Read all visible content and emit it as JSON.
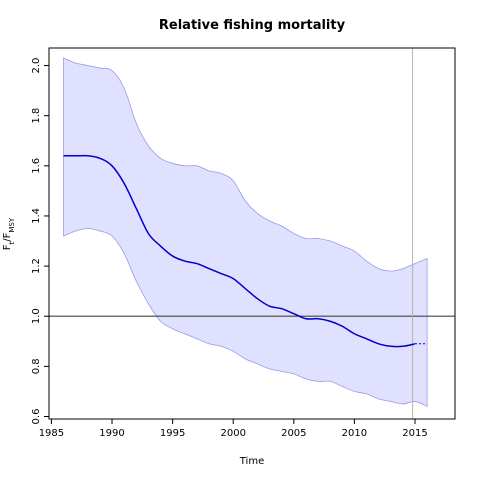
{
  "chart_data": {
    "type": "line",
    "title": "Relative fishing mortality",
    "xlabel": "Time",
    "ylabel": {
      "main": "F",
      "sub1": "t",
      "sep": "/F",
      "sub2": "MSY"
    },
    "xlim": [
      1984.8,
      2018.3
    ],
    "ylim": [
      0.59,
      2.07
    ],
    "x_ticks": [
      1985,
      1990,
      1995,
      2000,
      2005,
      2010,
      2015
    ],
    "x_tick_labels": [
      "1985",
      "1990",
      "1995",
      "2000",
      "2005",
      "2010",
      "2015"
    ],
    "y_ticks": [
      0.6,
      0.8,
      1.0,
      1.2,
      1.4,
      1.6,
      1.8,
      2.0
    ],
    "y_tick_labels": [
      "0.6",
      "0.8",
      "1.0",
      "1.2",
      "1.4",
      "1.6",
      "1.8",
      "2.0"
    ],
    "reference_line_y": 1.0,
    "vertical_line_x": 2014.8,
    "colors": {
      "line": "#0000cc",
      "band_fill": "#e0e0ff",
      "band_edge": "#9a9ae6",
      "hline": "#444444",
      "vline": "#b5b5b5"
    },
    "series": [
      {
        "role": "estimate",
        "x": [
          1986,
          1987,
          1988,
          1989,
          1990,
          1991,
          1992,
          1993,
          1994,
          1995,
          1996,
          1997,
          1998,
          1999,
          2000,
          2001,
          2002,
          2003,
          2004,
          2005,
          2006,
          2007,
          2008,
          2009,
          2010,
          2011,
          2012,
          2013,
          2014,
          2015
        ],
        "values": [
          1.64,
          1.64,
          1.64,
          1.63,
          1.6,
          1.53,
          1.43,
          1.33,
          1.28,
          1.24,
          1.22,
          1.21,
          1.19,
          1.17,
          1.15,
          1.11,
          1.07,
          1.04,
          1.03,
          1.01,
          0.99,
          0.99,
          0.98,
          0.96,
          0.93,
          0.91,
          0.89,
          0.88,
          0.88,
          0.89
        ]
      },
      {
        "role": "projection",
        "x": [
          2015,
          2016
        ],
        "values": [
          0.89,
          0.89
        ]
      },
      {
        "role": "upper",
        "x": [
          1986,
          1987,
          1988,
          1989,
          1990,
          1991,
          1992,
          1993,
          1994,
          1995,
          1996,
          1997,
          1998,
          1999,
          2000,
          2001,
          2002,
          2003,
          2004,
          2005,
          2006,
          2007,
          2008,
          2009,
          2010,
          2011,
          2012,
          2013,
          2014,
          2015,
          2016
        ],
        "values": [
          2.03,
          2.01,
          2.0,
          1.99,
          1.98,
          1.91,
          1.77,
          1.68,
          1.63,
          1.61,
          1.6,
          1.6,
          1.58,
          1.57,
          1.54,
          1.46,
          1.41,
          1.38,
          1.36,
          1.33,
          1.31,
          1.31,
          1.3,
          1.28,
          1.26,
          1.22,
          1.19,
          1.18,
          1.19,
          1.21,
          1.23
        ]
      },
      {
        "role": "lower",
        "x": [
          1986,
          1987,
          1988,
          1989,
          1990,
          1991,
          1992,
          1993,
          1994,
          1995,
          1996,
          1997,
          1998,
          1999,
          2000,
          2001,
          2002,
          2003,
          2004,
          2005,
          2006,
          2007,
          2008,
          2009,
          2010,
          2011,
          2012,
          2013,
          2014,
          2015,
          2016
        ],
        "values": [
          1.32,
          1.34,
          1.35,
          1.34,
          1.32,
          1.25,
          1.14,
          1.05,
          0.98,
          0.95,
          0.93,
          0.91,
          0.89,
          0.88,
          0.86,
          0.83,
          0.81,
          0.79,
          0.78,
          0.77,
          0.75,
          0.74,
          0.74,
          0.72,
          0.7,
          0.69,
          0.67,
          0.66,
          0.65,
          0.66,
          0.64
        ]
      }
    ]
  }
}
